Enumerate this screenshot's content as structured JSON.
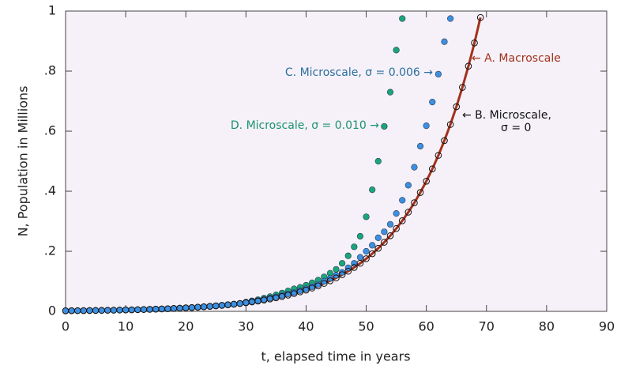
{
  "chart_data": {
    "type": "mixed",
    "xlabel": "t, elapsed time in years",
    "ylabel": "N, Population in Millions",
    "xlim": [
      0,
      90
    ],
    "ylim": [
      0,
      1
    ],
    "xticks": [
      0,
      10,
      20,
      30,
      40,
      50,
      60,
      70,
      80,
      90
    ],
    "yticks": [
      0,
      {
        "value": 0.2,
        "label": ".2"
      },
      {
        "value": 0.4,
        "label": ".4"
      },
      {
        "value": 0.6,
        "label": ".6"
      },
      {
        "value": 0.8,
        "label": ".8"
      },
      1
    ],
    "x": [
      0,
      1,
      2,
      3,
      4,
      5,
      6,
      7,
      8,
      9,
      10,
      11,
      12,
      13,
      14,
      15,
      16,
      17,
      18,
      19,
      20,
      21,
      22,
      23,
      24,
      25,
      26,
      27,
      28,
      29,
      30,
      31,
      32,
      33,
      34,
      35,
      36,
      37,
      38,
      39,
      40,
      41,
      42,
      43,
      44,
      45,
      46,
      47,
      48,
      49,
      50,
      51,
      52,
      53,
      54,
      55,
      56,
      57,
      58,
      59,
      60,
      61,
      62,
      63,
      64,
      65,
      66,
      67,
      68,
      69
    ],
    "series": [
      {
        "type": "line",
        "color": "#a3321c",
        "values": [
          0.0019,
          0.0021,
          0.0023,
          0.0025,
          0.0027,
          0.003,
          0.0033,
          0.0036,
          0.0039,
          0.0043,
          0.0047,
          0.0051,
          0.0056,
          0.0062,
          0.0067,
          0.0074,
          0.0081,
          0.0088,
          0.0097,
          0.0106,
          0.0116,
          0.0127,
          0.0139,
          0.0152,
          0.0167,
          0.0183,
          0.02,
          0.0219,
          0.0239,
          0.0262,
          0.0287,
          0.0314,
          0.0344,
          0.0376,
          0.0412,
          0.0451,
          0.0494,
          0.0541,
          0.0592,
          0.0648,
          0.0709,
          0.0776,
          0.085,
          0.0931,
          0.1019,
          0.1115,
          0.1221,
          0.1336,
          0.1463,
          0.1602,
          0.1753,
          0.1919,
          0.2101,
          0.23,
          0.2518,
          0.2757,
          0.3018,
          0.3303,
          0.3616,
          0.3959,
          0.4334,
          0.4744,
          0.5194,
          0.5686,
          0.6224,
          0.6814,
          0.7459,
          0.8166,
          0.8939,
          0.9786
        ]
      },
      {
        "type": "scatter",
        "color": "#1aa67a",
        "values": [
          0.0019,
          0.0021,
          0.0023,
          0.0025,
          0.0027,
          0.003,
          0.0033,
          0.0036,
          0.0039,
          0.0043,
          0.0047,
          0.0051,
          0.0056,
          0.0062,
          0.0067,
          0.0074,
          0.0081,
          0.0088,
          0.0097,
          0.0106,
          0.0116,
          0.0127,
          0.0139,
          0.0152,
          0.0167,
          0.0183,
          0.02,
          0.0219,
          0.0239,
          0.0262,
          0.031,
          0.035,
          0.039,
          0.044,
          0.049,
          0.055,
          0.061,
          0.068,
          0.075,
          0.08,
          0.087,
          0.095,
          0.104,
          0.115,
          0.127,
          0.14,
          0.16,
          0.185,
          0.215,
          0.25,
          0.315,
          0.405,
          0.5,
          0.616,
          0.73,
          0.87,
          0.975,
          null,
          null,
          null,
          null,
          null,
          null,
          null,
          null,
          null,
          null,
          null,
          null,
          null
        ]
      },
      {
        "type": "scatter",
        "color": "#3d8fe0",
        "values": [
          0.0019,
          0.0021,
          0.0023,
          0.0025,
          0.0027,
          0.003,
          0.0033,
          0.0036,
          0.0039,
          0.0043,
          0.0047,
          0.0051,
          0.0056,
          0.0062,
          0.0067,
          0.0074,
          0.0081,
          0.0088,
          0.0097,
          0.0106,
          0.0116,
          0.0127,
          0.0139,
          0.0152,
          0.0167,
          0.0183,
          0.02,
          0.0219,
          0.0239,
          0.0262,
          0.03,
          0.033,
          0.036,
          0.04,
          0.044,
          0.048,
          0.053,
          0.058,
          0.063,
          0.069,
          0.075,
          0.082,
          0.09,
          0.1,
          0.11,
          0.12,
          0.13,
          0.145,
          0.16,
          0.18,
          0.2,
          0.22,
          0.245,
          0.265,
          0.29,
          0.326,
          0.37,
          0.42,
          0.48,
          0.55,
          0.618,
          0.697,
          0.79,
          0.898,
          0.975,
          null,
          null,
          null,
          null,
          null
        ]
      },
      {
        "type": "scatter",
        "color": "none",
        "values": [
          0.0019,
          0.0021,
          0.0023,
          0.0025,
          0.0027,
          0.003,
          0.0033,
          0.0036,
          0.0039,
          0.0043,
          0.0047,
          0.0051,
          0.0056,
          0.0062,
          0.0067,
          0.0074,
          0.0081,
          0.0088,
          0.0097,
          0.0106,
          0.0116,
          0.0127,
          0.0139,
          0.0152,
          0.0167,
          0.0183,
          0.02,
          0.0219,
          0.0239,
          0.0262,
          0.0287,
          0.0314,
          0.0344,
          0.0376,
          0.0412,
          0.0451,
          0.0494,
          0.0541,
          0.0592,
          0.0648,
          0.0709,
          0.0776,
          0.085,
          0.0931,
          0.1019,
          0.1115,
          0.1221,
          0.1336,
          0.1463,
          0.1602,
          0.1753,
          0.1919,
          0.2101,
          0.23,
          0.2518,
          0.2757,
          0.3018,
          0.3303,
          0.3616,
          0.3959,
          0.4334,
          0.4744,
          0.5194,
          0.5686,
          0.6224,
          0.6814,
          0.7459,
          0.8166,
          0.8939,
          0.9786
        ]
      }
    ],
    "annotations": [
      {
        "text": "← A. Macroscale",
        "color": "#a3321c"
      },
      {
        "text": "C. Microscale, σ = 0.006 →",
        "color": "#2a6f9e"
      },
      {
        "text": "D. Microscale, σ = 0.010 →",
        "color": "#1a9470"
      },
      {
        "text": "← B. Microscale,",
        "color": "#111111"
      },
      {
        "text": "σ = 0",
        "color": "#111111"
      }
    ]
  }
}
